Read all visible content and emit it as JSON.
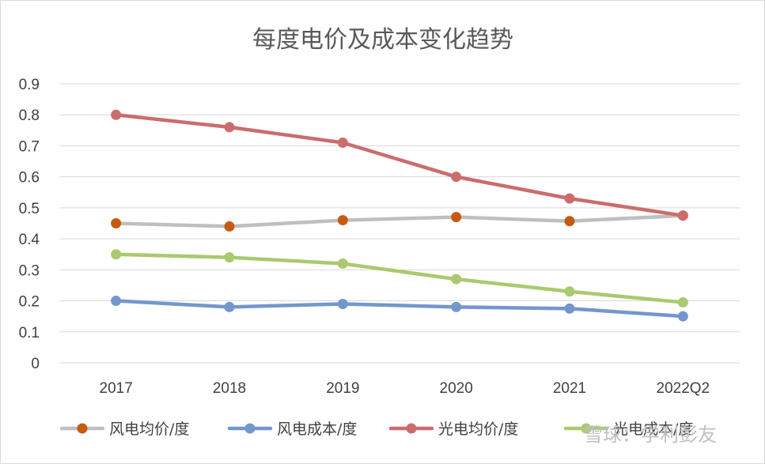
{
  "chart_data": {
    "type": "line",
    "title": "每度电价及成本变化趋势",
    "categories": [
      "2017",
      "2018",
      "2019",
      "2020",
      "2021",
      "2022Q2"
    ],
    "ylim": [
      0,
      0.9
    ],
    "yticks": [
      "0",
      "0.1",
      "0.2",
      "0.3",
      "0.4",
      "0.5",
      "0.6",
      "0.7",
      "0.8",
      "0.9"
    ],
    "grid": true,
    "legend_position": "bottom",
    "series": [
      {
        "name": "风电均价/度",
        "values": [
          0.45,
          0.44,
          0.46,
          0.47,
          0.457,
          0.475
        ],
        "line_color": "#bfbfbf",
        "marker_color": "#c55a11"
      },
      {
        "name": "风电成本/度",
        "values": [
          0.2,
          0.18,
          0.19,
          0.18,
          0.175,
          0.15
        ],
        "line_color": "#7397cd",
        "marker_color": "#7397cd"
      },
      {
        "name": "光电均价/度",
        "values": [
          0.8,
          0.76,
          0.71,
          0.6,
          0.53,
          0.475
        ],
        "line_color": "#cc6c6c",
        "marker_color": "#cc6c6c"
      },
      {
        "name": "光电成本/度",
        "values": [
          0.35,
          0.34,
          0.32,
          0.27,
          0.23,
          0.195
        ],
        "line_color": "#a9ca6e",
        "marker_color": "#a9ca6e"
      }
    ]
  },
  "watermark": "雪球：学利彭友"
}
